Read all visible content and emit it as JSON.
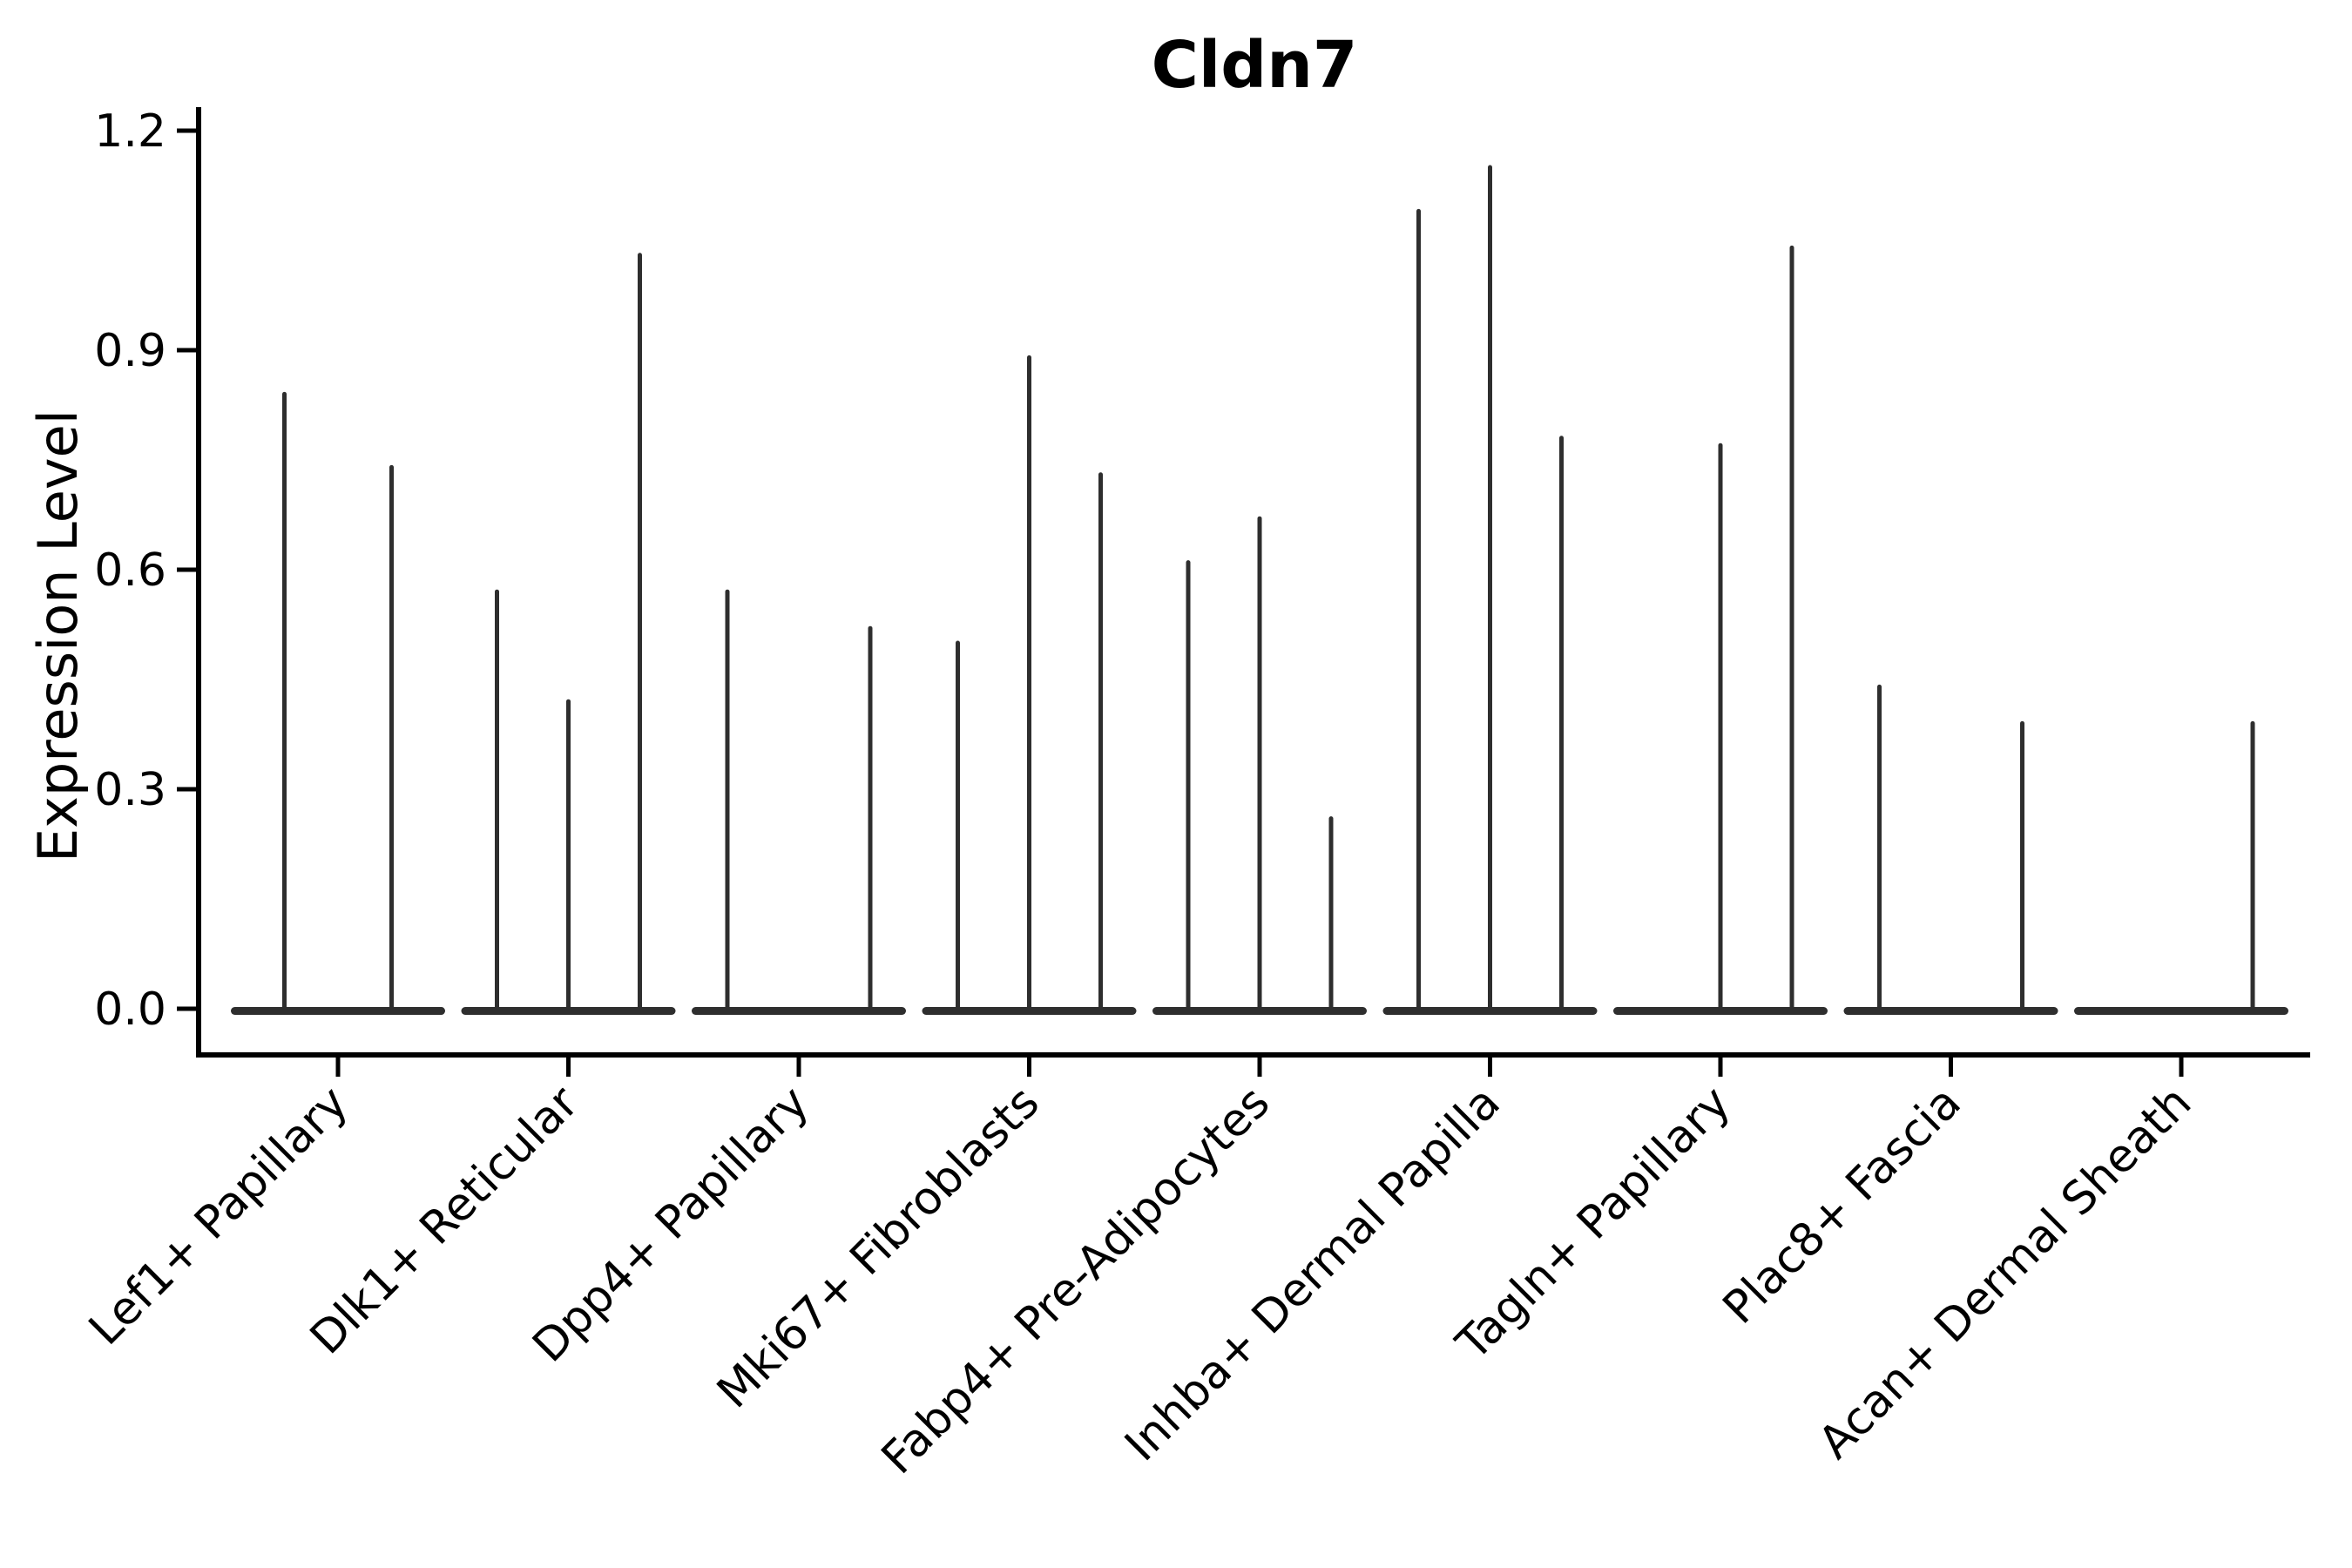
{
  "chart_data": {
    "type": "violin",
    "title": "Cldn7",
    "xlabel": "",
    "ylabel": "Expression Level",
    "ylim": [
      0.0,
      1.2
    ],
    "y_ticks": [
      0.0,
      0.3,
      0.6,
      0.9,
      1.2
    ],
    "y_tick_labels": [
      "0.0",
      "0.3",
      "0.6",
      "0.9",
      "1.2"
    ],
    "grid": false,
    "legend": "none",
    "x_tick_rotation_degrees": 45,
    "categories": [
      "Lef1+ Papillary",
      "Dlk1+ Reticular",
      "Dpp4+ Papillary",
      "Mki67+ Fibroblasts",
      "Fabp4+ Pre-Adipocytes",
      "Inhba+ Dermal Papilla",
      "Tagln+ Papillary",
      "Plac8+ Fascia",
      "Acan+ Dermal Sheath"
    ],
    "violins": [
      {
        "category": "Lef1+ Papillary",
        "sub_violin_max_expression": [
          0.84,
          0.74
        ]
      },
      {
        "category": "Dlk1+ Reticular",
        "sub_violin_max_expression": [
          0.57,
          0.42,
          1.03
        ]
      },
      {
        "category": "Dpp4+ Papillary",
        "sub_violin_max_expression": [
          0.57,
          0.0,
          0.52
        ]
      },
      {
        "category": "Mki67+ Fibroblasts",
        "sub_violin_max_expression": [
          0.5,
          0.89,
          0.73
        ]
      },
      {
        "category": "Fabp4+ Pre-Adipocytes",
        "sub_violin_max_expression": [
          0.61,
          0.67,
          0.26
        ]
      },
      {
        "category": "Inhba+ Dermal Papilla",
        "sub_violin_max_expression": [
          1.09,
          1.15,
          0.78
        ]
      },
      {
        "category": "Tagln+ Papillary",
        "sub_violin_max_expression": [
          0.0,
          0.77,
          1.04
        ]
      },
      {
        "category": "Plac8+ Fascia",
        "sub_violin_max_expression": [
          0.44,
          0.0,
          0.39
        ]
      },
      {
        "category": "Acan+ Dermal Sheath",
        "sub_violin_max_expression": [
          0.0,
          0.0,
          0.39
        ]
      }
    ],
    "colors": {
      "violin_line": "#2e2e2e",
      "axis": "#000000",
      "text": "#000000",
      "background": "#ffffff"
    }
  }
}
